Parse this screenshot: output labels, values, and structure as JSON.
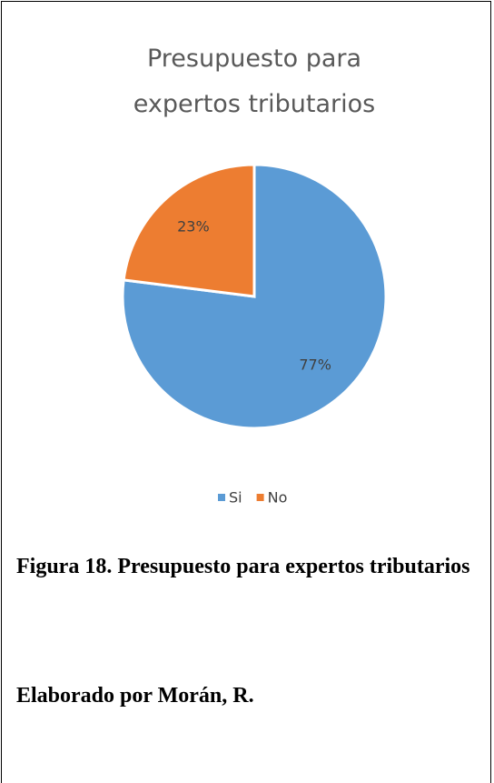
{
  "chart_data": {
    "type": "pie",
    "title": "Presupuesto para expertos tributarios",
    "categories": [
      "Si",
      "No"
    ],
    "values": [
      77,
      23
    ],
    "value_labels": [
      "77%",
      "23%"
    ],
    "colors": [
      "#5b9bd5",
      "#ed7d31"
    ],
    "legend": "bottom"
  },
  "caption": {
    "figure": "Figura 18. Presupuesto para expertos tributarios",
    "credit": "Elaborado por Morán, R."
  }
}
